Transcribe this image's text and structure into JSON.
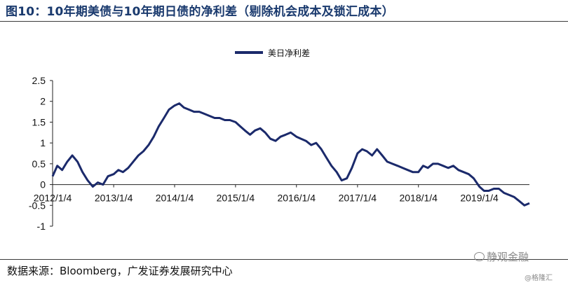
{
  "header": {
    "title": "图10：10年期美债与10年期日债的净利差（剔除机会成本及锁汇成本）"
  },
  "footer": {
    "source": "数据来源：Bloomberg，广发证券发展研究中心"
  },
  "watermark": {
    "main": "静观金融",
    "sub": "@格隆汇"
  },
  "colors": {
    "series": "#1b2a6b",
    "rule": "#3b3b3b"
  },
  "chart_data": {
    "type": "line",
    "title": "",
    "xlabel": "",
    "ylabel": "",
    "legend": {
      "position": "top-center",
      "entries": [
        "美日净利差"
      ]
    },
    "grid": false,
    "ylim": [
      -1,
      2.5
    ],
    "xlim": [
      "2012-01-04",
      "2019-10-31"
    ],
    "y_ticks": [
      2.5,
      2,
      1.5,
      1,
      0.5,
      0,
      -0.5,
      -1
    ],
    "y_tick_labels": [
      "2.5",
      "2",
      "1.5",
      "1",
      "0.5",
      "0",
      "-0.5",
      "-1"
    ],
    "x_ticks": [
      "2012-01-04",
      "2013-01-04",
      "2014-01-04",
      "2015-01-04",
      "2016-01-04",
      "2017-01-04",
      "2018-01-04",
      "2019-01-04"
    ],
    "x_tick_labels": [
      "2012/1/4",
      "2013/1/4",
      "2014/1/4",
      "2015/1/4",
      "2016/1/4",
      "2017/1/4",
      "2018/1/4",
      "2019/1/4"
    ],
    "series": [
      {
        "name": "美日净利差",
        "x": [
          "2012-01-04",
          "2012-02-01",
          "2012-03-01",
          "2012-04-01",
          "2012-05-01",
          "2012-06-01",
          "2012-07-01",
          "2012-08-01",
          "2012-09-01",
          "2012-10-01",
          "2012-11-01",
          "2012-12-01",
          "2013-01-04",
          "2013-02-01",
          "2013-03-01",
          "2013-04-01",
          "2013-05-01",
          "2013-06-01",
          "2013-07-01",
          "2013-08-01",
          "2013-09-01",
          "2013-10-01",
          "2013-11-01",
          "2013-12-01",
          "2014-01-04",
          "2014-02-01",
          "2014-03-01",
          "2014-04-01",
          "2014-05-01",
          "2014-06-01",
          "2014-07-01",
          "2014-08-01",
          "2014-09-01",
          "2014-10-01",
          "2014-11-01",
          "2014-12-01",
          "2015-01-04",
          "2015-02-01",
          "2015-03-01",
          "2015-04-01",
          "2015-05-01",
          "2015-06-01",
          "2015-07-01",
          "2015-08-01",
          "2015-09-01",
          "2015-10-01",
          "2015-11-01",
          "2015-12-01",
          "2016-01-04",
          "2016-02-01",
          "2016-03-01",
          "2016-04-01",
          "2016-05-01",
          "2016-06-01",
          "2016-07-01",
          "2016-08-01",
          "2016-09-01",
          "2016-10-01",
          "2016-11-01",
          "2016-12-01",
          "2017-01-04",
          "2017-02-01",
          "2017-03-01",
          "2017-04-01",
          "2017-05-01",
          "2017-06-01",
          "2017-07-01",
          "2017-08-01",
          "2017-09-01",
          "2017-10-01",
          "2017-11-01",
          "2017-12-01",
          "2018-01-04",
          "2018-02-01",
          "2018-03-01",
          "2018-04-01",
          "2018-05-01",
          "2018-06-01",
          "2018-07-01",
          "2018-08-01",
          "2018-09-01",
          "2018-10-01",
          "2018-11-01",
          "2018-12-01",
          "2019-01-04",
          "2019-02-01",
          "2019-03-01",
          "2019-04-01",
          "2019-05-01",
          "2019-06-01",
          "2019-07-01",
          "2019-08-01",
          "2019-09-01",
          "2019-10-01",
          "2019-10-31"
        ],
        "values": [
          0.2,
          0.45,
          0.35,
          0.55,
          0.7,
          0.55,
          0.3,
          0.1,
          -0.05,
          0.05,
          0.0,
          0.2,
          0.25,
          0.35,
          0.3,
          0.4,
          0.55,
          0.7,
          0.8,
          0.95,
          1.15,
          1.4,
          1.6,
          1.8,
          1.9,
          1.95,
          1.85,
          1.8,
          1.75,
          1.75,
          1.7,
          1.65,
          1.6,
          1.6,
          1.55,
          1.55,
          1.5,
          1.4,
          1.3,
          1.2,
          1.3,
          1.35,
          1.25,
          1.1,
          1.05,
          1.15,
          1.2,
          1.25,
          1.15,
          1.1,
          1.05,
          0.95,
          1.0,
          0.85,
          0.65,
          0.45,
          0.3,
          0.1,
          0.15,
          0.4,
          0.75,
          0.85,
          0.8,
          0.7,
          0.85,
          0.7,
          0.55,
          0.5,
          0.45,
          0.4,
          0.35,
          0.3,
          0.3,
          0.45,
          0.4,
          0.5,
          0.5,
          0.45,
          0.4,
          0.45,
          0.35,
          0.3,
          0.25,
          0.15,
          -0.05,
          -0.15,
          -0.15,
          -0.1,
          -0.1,
          -0.2,
          -0.25,
          -0.3,
          -0.4,
          -0.5,
          -0.45
        ]
      }
    ]
  }
}
